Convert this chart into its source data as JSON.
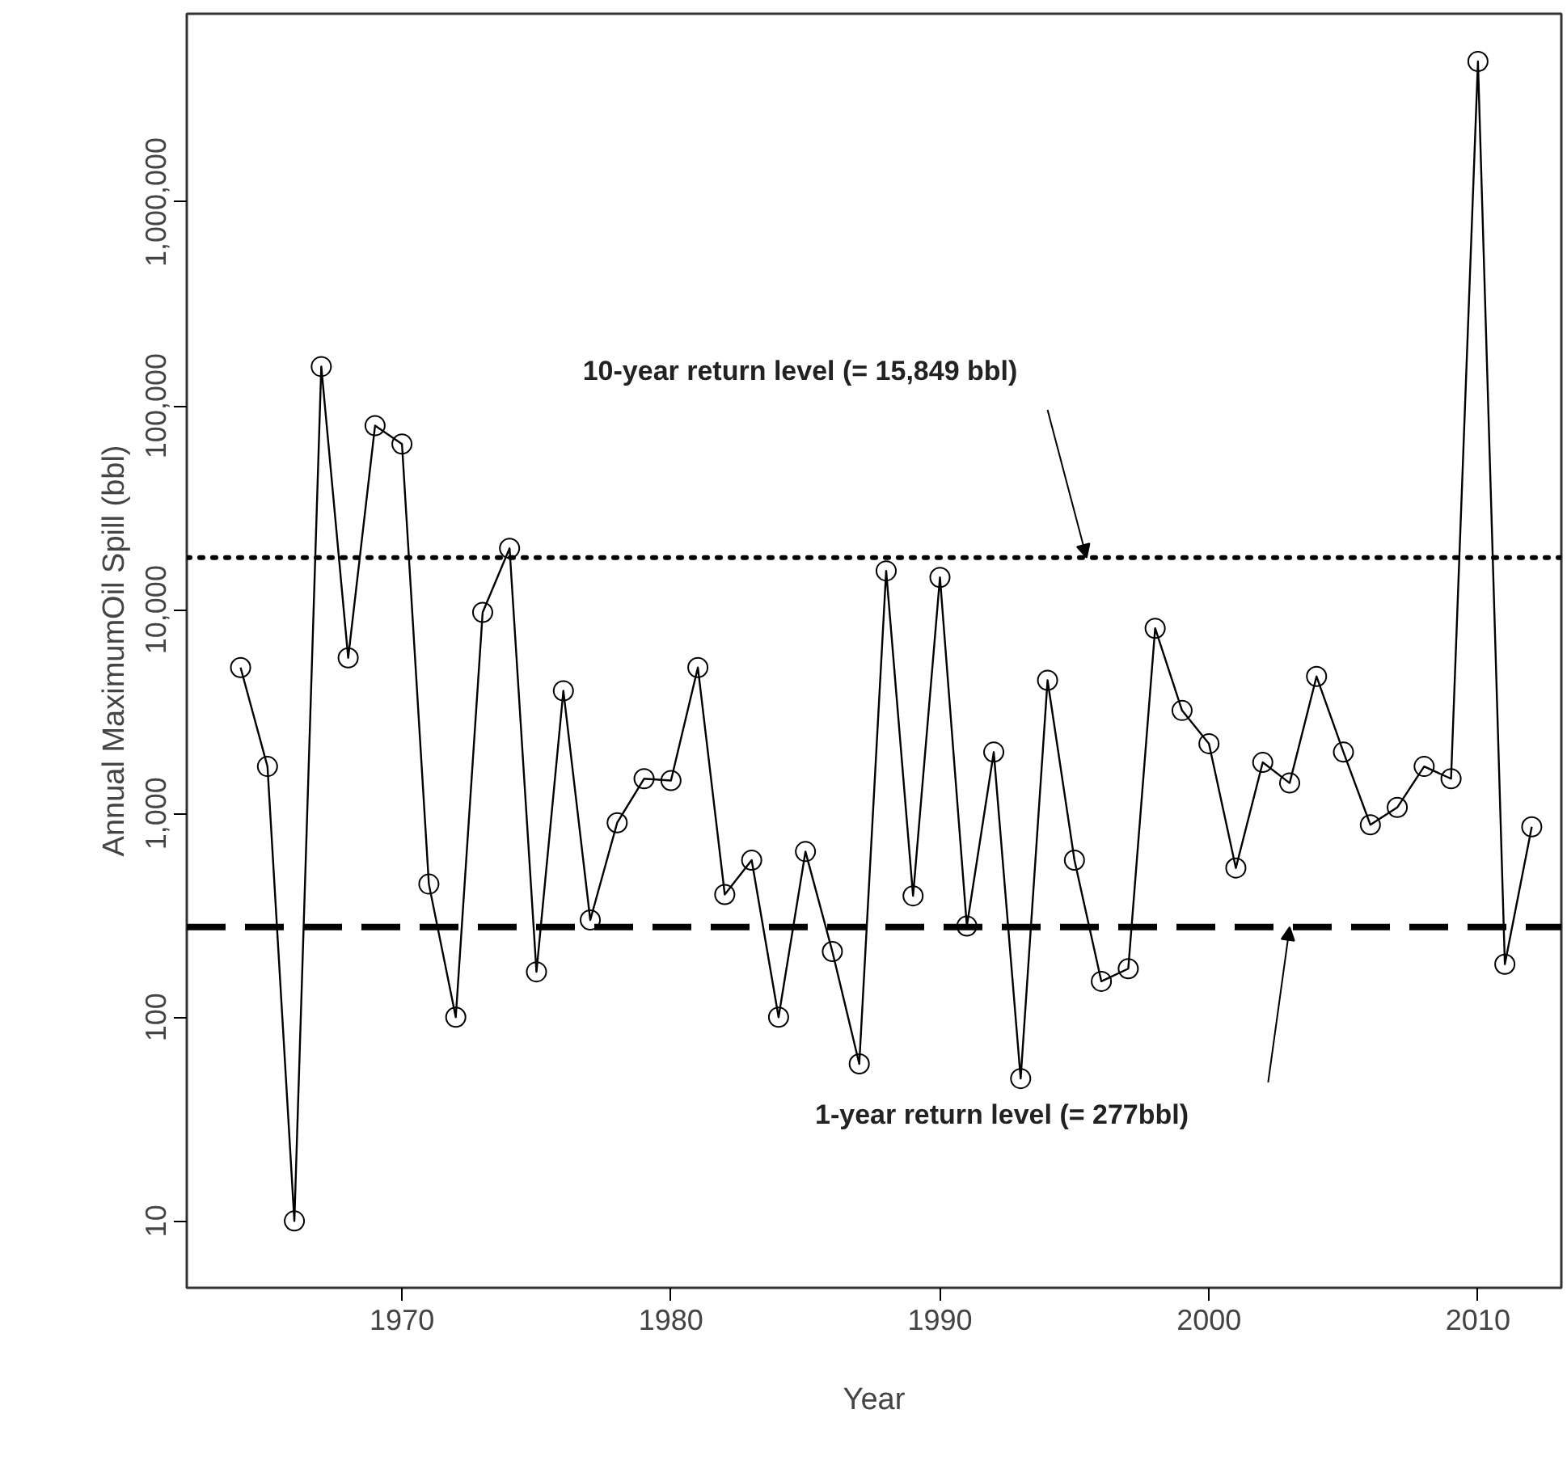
{
  "chart_data": {
    "type": "line",
    "xlabel": "Year",
    "ylabel": "Annual MaximumOil Spill (bbl)",
    "x": [
      1964,
      1965,
      1966,
      1967,
      1968,
      1969,
      1970,
      1971,
      1972,
      1973,
      1974,
      1975,
      1976,
      1977,
      1978,
      1979,
      1980,
      1981,
      1982,
      1983,
      1984,
      1985,
      1986,
      1987,
      1988,
      1989,
      1990,
      1991,
      1992,
      1993,
      1994,
      1995,
      1996,
      1997,
      1998,
      1999,
      2000,
      2001,
      2002,
      2003,
      2004,
      2005,
      2006,
      2007,
      2008,
      2009,
      2010,
      2011,
      2012
    ],
    "series": [
      {
        "color": "#000000",
        "values": [
          5200,
          1700,
          10,
          156000,
          5800,
          80000,
          65000,
          450,
          100,
          9700,
          20000,
          167,
          4000,
          300,
          900,
          1480,
          1450,
          5200,
          400,
          590,
          100,
          650,
          210,
          59,
          15500,
          394,
          14400,
          280,
          2000,
          50,
          4500,
          590,
          150,
          173,
          8100,
          3200,
          2200,
          540,
          1780,
          1410,
          4700,
          2000,
          880,
          1070,
          1700,
          1480,
          4900000,
          182,
          860
        ]
      }
    ],
    "log": "y",
    "marker": "circle",
    "line_style": "solid",
    "grid": false,
    "xlim": [
      1962,
      2013.1
    ],
    "ylim": [
      4.7,
      8400000
    ],
    "xticks": [
      1970,
      1980,
      1990,
      2000,
      2010
    ],
    "yticks": [
      {
        "value": 10,
        "label": "10"
      },
      {
        "value": 100,
        "label": "100"
      },
      {
        "value": 1000,
        "label": "1,000"
      },
      {
        "value": 10000,
        "label": "10,000"
      },
      {
        "value": 100000,
        "label": "100,000"
      },
      {
        "value": 1000000,
        "label": "1,000,000"
      }
    ],
    "ref_lines": [
      {
        "axis": "y",
        "value": 18000,
        "line_style": "dotted",
        "color": "#000000"
      },
      {
        "axis": "y",
        "value": 277,
        "line_style": "dashed",
        "color": "#000000"
      }
    ],
    "annotations": [
      "10-year return level (= 15,849 bbl)",
      "1-year return level (= 277bbl)"
    ]
  }
}
